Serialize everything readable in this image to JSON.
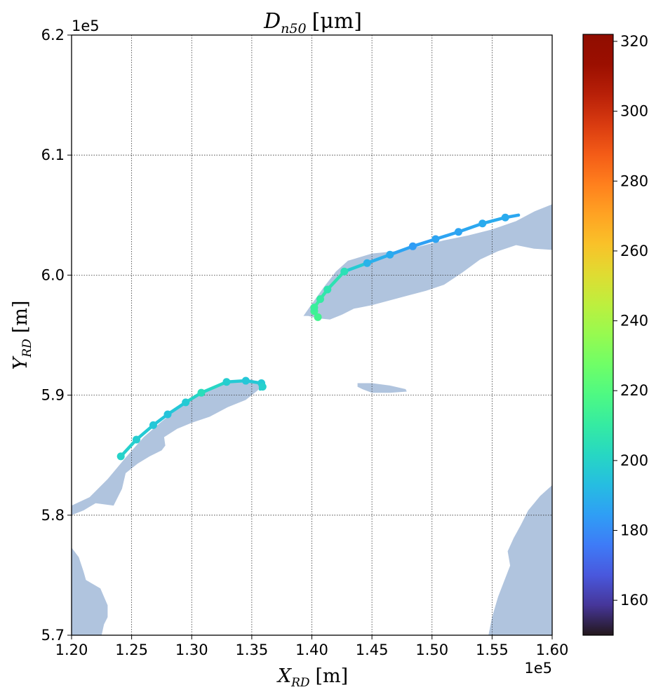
{
  "chart_data": {
    "type": "line",
    "title": "D_n50 [μm]",
    "title_parts": {
      "main": "D",
      "sub": "n50",
      "unit": "[μm]"
    },
    "xlabel": "X_RD [m]",
    "xlabel_parts": {
      "main": "X",
      "sub": "RD",
      "unit": "[m]"
    },
    "ylabel": "Y_RD [m]",
    "ylabel_parts": {
      "main": "Y",
      "sub": "RD",
      "unit": "[m]"
    },
    "xlim": [
      120000,
      160000
    ],
    "ylim": [
      570000,
      620000
    ],
    "x_offset_label": "1e5",
    "y_offset_label": "1e5",
    "x_ticks": [
      1.2,
      1.25,
      1.3,
      1.35,
      1.4,
      1.45,
      1.5,
      1.55,
      1.6
    ],
    "x_tick_labels": [
      "1.20",
      "1.25",
      "1.30",
      "1.35",
      "1.40",
      "1.45",
      "1.50",
      "1.55",
      "1.60"
    ],
    "y_ticks": [
      5.7,
      5.8,
      5.9,
      6.0,
      6.1,
      6.2
    ],
    "y_tick_labels": [
      "5.7",
      "5.8",
      "5.9",
      "6.0",
      "6.1",
      "6.2"
    ],
    "grid": true,
    "colorbar": {
      "colormap": "turbo",
      "range": [
        150,
        322
      ],
      "ticks": [
        160,
        180,
        200,
        220,
        240,
        260,
        280,
        300,
        320
      ],
      "tick_labels": [
        "160",
        "180",
        "200",
        "220",
        "240",
        "260",
        "280",
        "300",
        "320"
      ]
    },
    "land_color": "#b0c4de",
    "land_polygons": [
      [
        [
          120000,
          580800
        ],
        [
          121500,
          581500
        ],
        [
          123000,
          583000
        ],
        [
          124500,
          584800
        ],
        [
          126000,
          586500
        ],
        [
          127500,
          587800
        ],
        [
          129000,
          589000
        ],
        [
          130500,
          590000
        ],
        [
          132000,
          590800
        ],
        [
          133500,
          591200
        ],
        [
          135000,
          591300
        ],
        [
          135800,
          590900
        ],
        [
          135500,
          590400
        ],
        [
          134500,
          589600
        ],
        [
          133000,
          589000
        ],
        [
          131500,
          588200
        ],
        [
          130000,
          587700
        ],
        [
          128800,
          587200
        ],
        [
          127700,
          586500
        ],
        [
          127800,
          585800
        ],
        [
          127500,
          585400
        ],
        [
          126500,
          584900
        ],
        [
          125500,
          584300
        ],
        [
          124500,
          583500
        ],
        [
          124200,
          582200
        ],
        [
          123500,
          580800
        ],
        [
          122000,
          581000
        ],
        [
          121000,
          580400
        ],
        [
          120000,
          580000
        ]
      ],
      [
        [
          139300,
          596600
        ],
        [
          140000,
          597600
        ],
        [
          141000,
          599000
        ],
        [
          142000,
          600300
        ],
        [
          143000,
          601200
        ],
        [
          145000,
          601800
        ],
        [
          147000,
          602000
        ],
        [
          149000,
          602400
        ],
        [
          151000,
          602900
        ],
        [
          153000,
          603300
        ],
        [
          155000,
          603800
        ],
        [
          157000,
          604500
        ],
        [
          158500,
          605300
        ],
        [
          160000,
          605900
        ],
        [
          160000,
          602100
        ],
        [
          158500,
          602200
        ],
        [
          157000,
          602500
        ],
        [
          155500,
          602000
        ],
        [
          154000,
          601300
        ],
        [
          152500,
          600200
        ],
        [
          151000,
          599200
        ],
        [
          149500,
          598700
        ],
        [
          148000,
          598300
        ],
        [
          146500,
          597900
        ],
        [
          145000,
          597500
        ],
        [
          143500,
          597200
        ],
        [
          142500,
          596700
        ],
        [
          141500,
          596300
        ],
        [
          140500,
          596400
        ],
        [
          139700,
          596600
        ]
      ],
      [
        [
          143800,
          591000
        ],
        [
          145000,
          591000
        ],
        [
          146500,
          590800
        ],
        [
          147800,
          590500
        ],
        [
          147900,
          590300
        ],
        [
          146500,
          590200
        ],
        [
          145000,
          590200
        ],
        [
          144200,
          590500
        ],
        [
          143800,
          590700
        ]
      ],
      [
        [
          120000,
          577300
        ],
        [
          120600,
          576500
        ],
        [
          121000,
          575300
        ],
        [
          121200,
          574600
        ],
        [
          122400,
          573900
        ],
        [
          123000,
          572500
        ],
        [
          123000,
          571500
        ],
        [
          122700,
          570900
        ],
        [
          122500,
          570000
        ],
        [
          120000,
          570000
        ]
      ],
      [
        [
          160000,
          582500
        ],
        [
          159000,
          581600
        ],
        [
          158000,
          580400
        ],
        [
          157400,
          579200
        ],
        [
          156800,
          578100
        ],
        [
          156300,
          577000
        ],
        [
          156500,
          575800
        ],
        [
          156000,
          574500
        ],
        [
          155500,
          573200
        ],
        [
          155000,
          571500
        ],
        [
          154700,
          570000
        ],
        [
          160000,
          570000
        ]
      ]
    ],
    "series": [
      {
        "x": [
          124100,
          125400,
          126800,
          128000,
          129500,
          130800,
          132900,
          134500,
          135800,
          135900,
          135700
        ],
        "y": [
          584900,
          586300,
          587500,
          588400,
          589400,
          590200,
          591100,
          591200,
          591000,
          590700,
          590500
        ],
        "values": [
          200,
          198,
          196,
          195,
          197,
          204,
          198,
          196,
          197,
          199,
          200
        ]
      },
      {
        "x": [
          140500,
          140200,
          140200,
          140700,
          141300,
          142700,
          144600,
          146500,
          148400,
          150300,
          152200,
          154200,
          156100,
          157200
        ],
        "y": [
          596500,
          597000,
          597300,
          598000,
          598800,
          600300,
          601000,
          601700,
          602400,
          603000,
          603600,
          604300,
          604800,
          605000
        ],
        "values": [
          215,
          214,
          212,
          210,
          207,
          205,
          190,
          188,
          184,
          186,
          186,
          188,
          188,
          186
        ]
      }
    ]
  }
}
